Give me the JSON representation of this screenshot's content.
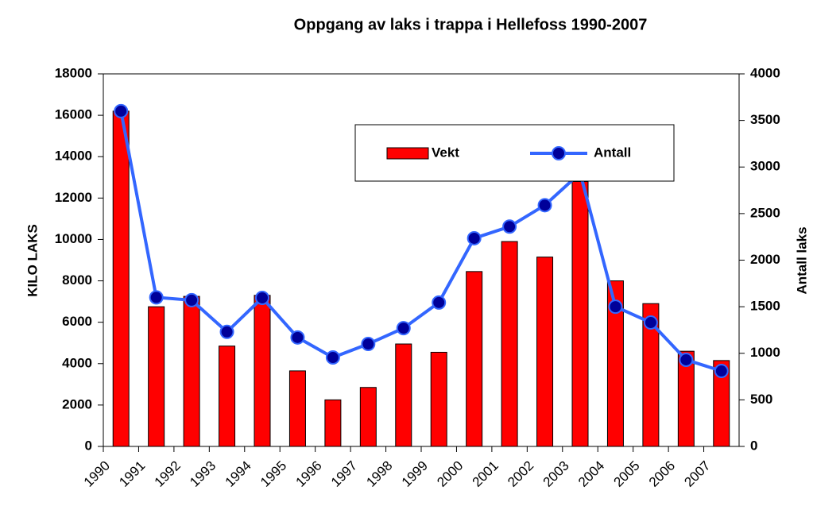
{
  "chart_data": {
    "type": "bar_line",
    "title": "Oppgang av laks i trappa i Hellefoss 1990-2007",
    "y_label": "KILO LAKS",
    "y2_label": "Antall laks",
    "categories": [
      "1990",
      "1991",
      "1992",
      "1993",
      "1994",
      "1995",
      "1996",
      "1997",
      "1998",
      "1999",
      "2000",
      "2001",
      "2002",
      "2003",
      "2004",
      "2005",
      "2006",
      "2007"
    ],
    "series": [
      {
        "name": "Vekt",
        "type": "bar",
        "color": "#ff0000",
        "values": [
          16200,
          6750,
          7250,
          4850,
          7300,
          3650,
          2250,
          2850,
          4950,
          4550,
          8450,
          9900,
          9150,
          12800,
          8000,
          6900,
          4600,
          4150
        ]
      },
      {
        "name": "Antall",
        "type": "line",
        "axis": "y2",
        "color": "#3366ff",
        "marker_color": "#000099",
        "values": [
          3600,
          1600,
          1570,
          1230,
          1595,
          1170,
          955,
          1100,
          1270,
          1545,
          2235,
          2360,
          2590,
          2935,
          1500,
          1330,
          930,
          810
        ]
      }
    ],
    "ylim": [
      0,
      18000
    ],
    "yticks": [
      0,
      2000,
      4000,
      6000,
      8000,
      10000,
      12000,
      14000,
      16000,
      18000
    ],
    "y2lim": [
      0,
      4000
    ],
    "y2ticks": [
      0,
      500,
      1000,
      1500,
      2000,
      2500,
      3000,
      3500,
      4000
    ],
    "legend": "top-right"
  }
}
